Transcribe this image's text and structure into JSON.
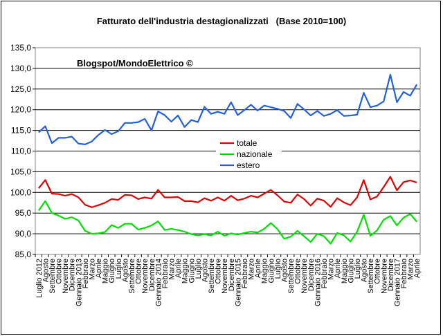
{
  "chart_data": {
    "type": "line",
    "title": "Fatturato dell'industria destagionalizzati   (Base 2010=100)",
    "watermark": "Blogspot/MondoElettrico ©",
    "ylim": [
      85,
      135
    ],
    "yticks": [
      "85,0",
      "90,0",
      "95,0",
      "100,0",
      "105,0",
      "110,0",
      "115,0",
      "120,0",
      "125,0",
      "130,0",
      "135,0"
    ],
    "grid": "horizontal",
    "legend_position": "center-right",
    "categories": [
      "Luglio 2012",
      "Agosto",
      "Settembre",
      "Ottobre",
      "Novembre",
      "Dicembre",
      "Gennaio 2013",
      "Febbraio",
      "Marzo",
      "Aprile",
      "Maggio",
      "Giugno",
      "Luglio",
      "Agosto",
      "Settembre",
      "Ottobre",
      "Novembre",
      "Dicembre",
      "Gennaio 2014",
      "Febbraio",
      "Marzo",
      "Aprile",
      "Maggio",
      "Giugno",
      "Luglio",
      "Agosto",
      "Settembre",
      "Ottobre",
      "Novembre",
      "Dicembre",
      "Gennaio 2015",
      "Febbraio",
      "Marzo",
      "Aprile",
      "Maggio",
      "Giugno",
      "Luglio",
      "Agosto",
      "Settembre",
      "Ottobre",
      "Novembre",
      "Dicembre",
      "Gennaio 2016",
      "Febbraio",
      "Marzo",
      "Aprile",
      "Maggio",
      "Giugno",
      "Luglio",
      "Agosto",
      "Settembre",
      "Ottobre",
      "Novembre",
      "Dicembre",
      "Gennaio 2017",
      "Febbraio",
      "Marzo",
      "Aprile"
    ],
    "series": [
      {
        "name": "totale",
        "color": "#e00000",
        "values": [
          101.0,
          103.0,
          99.7,
          99.6,
          99.2,
          99.6,
          98.8,
          97.0,
          96.4,
          96.9,
          97.5,
          98.4,
          98.2,
          99.4,
          99.3,
          98.4,
          98.8,
          98.5,
          100.6,
          98.8,
          98.8,
          98.9,
          97.9,
          97.9,
          97.6,
          98.6,
          98.0,
          98.8,
          98.0,
          99.2,
          98.1,
          98.5,
          99.2,
          98.8,
          99.7,
          100.6,
          99.3,
          97.8,
          97.5,
          99.5,
          98.4,
          96.8,
          98.5,
          98.0,
          96.5,
          98.6,
          97.6,
          96.9,
          98.8,
          103.0,
          98.3,
          99.0,
          101.3,
          103.8,
          100.5,
          102.5,
          102.9,
          102.4
        ]
      },
      {
        "name": "nazionale",
        "color": "#00e000",
        "values": [
          95.6,
          97.9,
          95.0,
          94.4,
          93.6,
          94.0,
          93.2,
          90.7,
          90.0,
          90.1,
          90.4,
          92.1,
          91.4,
          92.4,
          92.4,
          91.0,
          91.4,
          92.0,
          93.0,
          90.9,
          91.2,
          90.9,
          90.5,
          89.9,
          89.6,
          89.9,
          89.6,
          90.5,
          89.5,
          90.1,
          89.8,
          90.2,
          90.5,
          90.3,
          91.2,
          92.6,
          91.1,
          88.8,
          89.3,
          90.7,
          89.4,
          88.0,
          90.0,
          89.4,
          87.6,
          90.2,
          89.6,
          88.1,
          90.5,
          94.6,
          89.5,
          90.8,
          93.4,
          94.3,
          92.0,
          93.9,
          94.8,
          92.9
        ]
      },
      {
        "name": "estero",
        "color": "#2060e0",
        "values": [
          114.5,
          116.0,
          111.9,
          113.2,
          113.2,
          113.5,
          111.8,
          111.6,
          112.3,
          113.9,
          115.1,
          114.1,
          114.8,
          116.8,
          116.8,
          117.0,
          117.8,
          115.0,
          119.6,
          118.7,
          117.1,
          118.6,
          115.8,
          117.5,
          117.0,
          120.7,
          119.0,
          119.5,
          119.0,
          121.8,
          118.7,
          119.9,
          121.2,
          119.8,
          121.0,
          120.6,
          120.2,
          119.7,
          118.0,
          121.4,
          120.1,
          118.6,
          119.7,
          118.5,
          119.0,
          119.9,
          118.5,
          118.6,
          118.8,
          124.1,
          120.6,
          121.0,
          122.0,
          128.5,
          121.8,
          124.3,
          123.4,
          126.1
        ]
      }
    ]
  }
}
